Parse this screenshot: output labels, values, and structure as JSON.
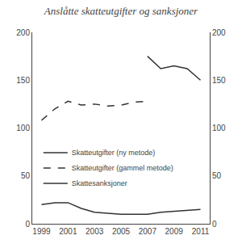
{
  "chart_data": {
    "type": "line",
    "title": "Anslåtte skatteutgifter og sanksjoner",
    "x": [
      1999,
      2000,
      2001,
      2002,
      2003,
      2004,
      2005,
      2006,
      2007,
      2008,
      2009,
      2010,
      2011
    ],
    "series": [
      {
        "name": "Skatteutgifter (ny metode)",
        "color": "#333333",
        "line_style": "solid",
        "values": [
          null,
          null,
          null,
          null,
          null,
          null,
          null,
          null,
          175,
          162,
          165,
          162,
          150
        ]
      },
      {
        "name": "Skatteutgifter (gammel metode)",
        "color": "#333333",
        "line_style": "dashed",
        "values": [
          108,
          120,
          128,
          124,
          125,
          123,
          124,
          127,
          128,
          null,
          null,
          null,
          null
        ]
      },
      {
        "name": "Skattesanksjoner",
        "color": "#333333",
        "line_style": "solid",
        "values": [
          20,
          22,
          22,
          16,
          12,
          11,
          10,
          10,
          10,
          12,
          13,
          14,
          15
        ]
      }
    ],
    "xlim": [
      1998.3,
      2011.7
    ],
    "xticks": [
      1999,
      2001,
      2003,
      2005,
      2007,
      2009,
      2011
    ],
    "ylim": [
      0,
      200
    ],
    "yticks": [
      0,
      50,
      100,
      150,
      200
    ],
    "y2lim": [
      0,
      200
    ],
    "y2ticks": [
      0,
      50,
      100,
      150,
      200
    ],
    "grid": false,
    "legend": "lower left"
  }
}
